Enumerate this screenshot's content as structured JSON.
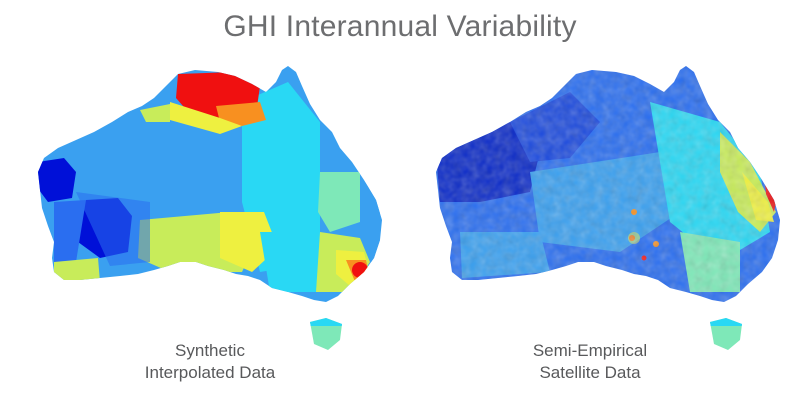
{
  "title": "GHI Interannual Variability",
  "panels": [
    {
      "caption_line1": "Synthetic",
      "caption_line2": "Interpolated Data",
      "style": "interpolated"
    },
    {
      "caption_line1": "Semi-Empirical",
      "caption_line2": "Satellite Data",
      "style": "satellite"
    }
  ],
  "colors": {
    "dark_blue": "#0010d8",
    "mid_blue": "#2a6ef0",
    "light_blue": "#3aa0f0",
    "cyan": "#29d8f4",
    "aqua_green": "#7ee8b8",
    "yellow_green": "#c8ec5a",
    "yellow": "#eef040",
    "orange": "#f89020",
    "red": "#f01010",
    "text_gray": "#6d6e70"
  }
}
